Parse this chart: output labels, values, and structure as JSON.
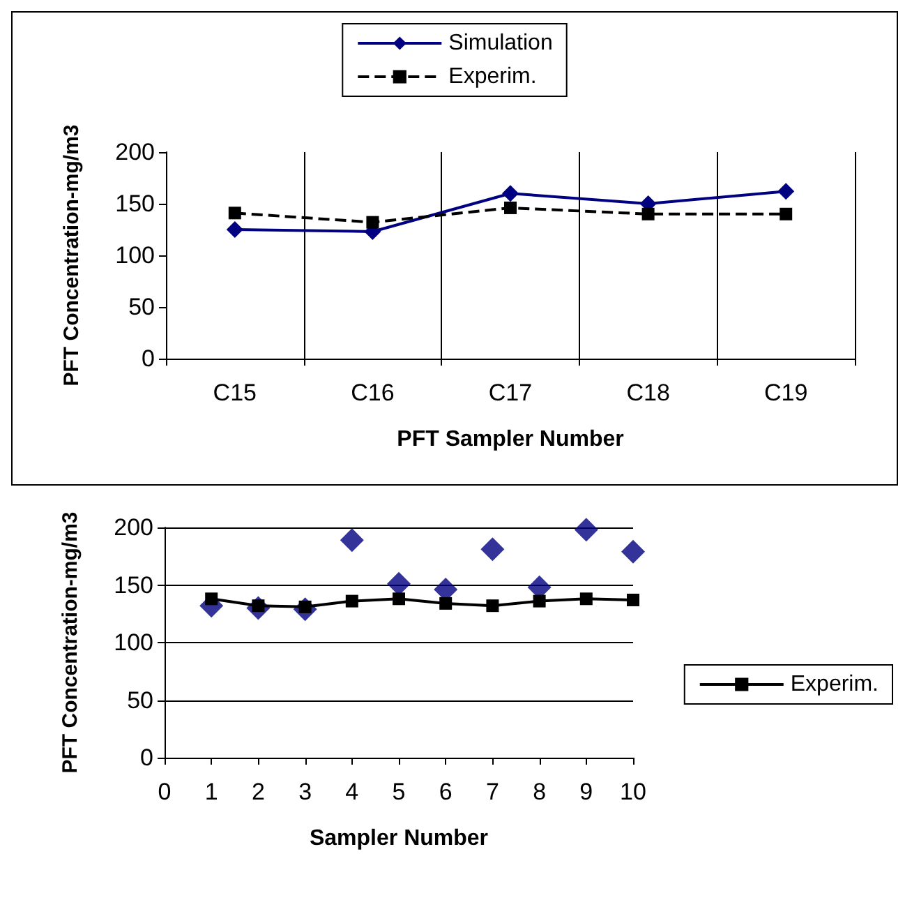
{
  "chart_data": [
    {
      "type": "line",
      "xlabel": "PFT Sampler Number",
      "ylabel": "PFT Concentration-mg/m3",
      "categories": [
        "C15",
        "C16",
        "C17",
        "C18",
        "C19"
      ],
      "series": [
        {
          "name": "Simulation",
          "color": "#000080",
          "values": [
            125,
            123,
            160,
            150,
            162
          ],
          "marker": "diamond",
          "line_style": "solid"
        },
        {
          "name": "Experim.",
          "color": "#000000",
          "values": [
            141,
            132,
            146,
            140,
            140
          ],
          "marker": "square",
          "line_style": "dashed"
        }
      ],
      "ylim": [
        0,
        200
      ],
      "yticks": [
        0,
        50,
        100,
        150,
        200
      ],
      "grid": "x",
      "legend": "top"
    },
    {
      "type": "line",
      "xlabel": "Sampler Number",
      "ylabel": "PFT Concentration-mg/m3",
      "x": [
        1,
        2,
        3,
        4,
        5,
        6,
        7,
        8,
        9,
        10
      ],
      "series": [
        {
          "type": "scatter",
          "color": "#000080",
          "values": [
            132,
            130,
            129,
            189,
            151,
            146,
            181,
            148,
            198,
            179
          ],
          "marker": "diamond"
        },
        {
          "name": "Experim.",
          "color": "#000000",
          "values": [
            138,
            132,
            131,
            136,
            138,
            134,
            132,
            136,
            138,
            137
          ],
          "marker": "square",
          "line_style": "solid"
        }
      ],
      "xlim": [
        0,
        10
      ],
      "xticks": [
        0,
        1,
        2,
        3,
        4,
        5,
        6,
        7,
        8,
        9,
        10
      ],
      "ylim": [
        0,
        200
      ],
      "yticks": [
        0,
        50,
        100,
        150,
        200
      ],
      "grid": "y",
      "legend": "right"
    }
  ]
}
